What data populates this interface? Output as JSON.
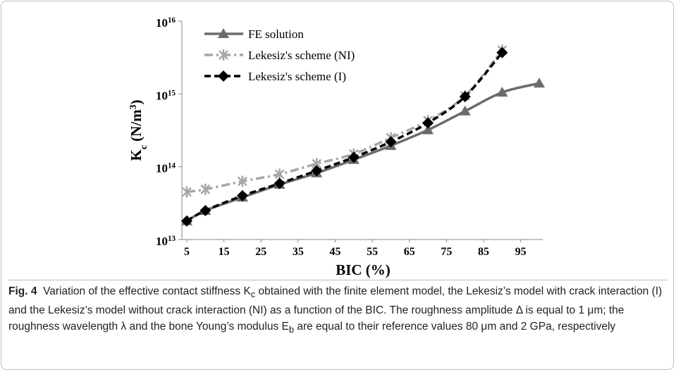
{
  "chart_data": {
    "type": "line",
    "log_y": true,
    "xlabel": "BIC (%)",
    "ylabel": "K_c (N/m^3)",
    "xlim": [
      5,
      100
    ],
    "xticks": [
      5,
      15,
      25,
      35,
      45,
      55,
      65,
      75,
      85,
      95
    ],
    "ylim": [
      10000000000000.0,
      1e+16
    ],
    "yticks": [
      {
        "value": 10000000000000.0,
        "label": "10^13"
      },
      {
        "value": 100000000000000.0,
        "label": "10^14"
      },
      {
        "value": 1000000000000000.0,
        "label": "10^15"
      },
      {
        "value": 1e+16,
        "label": "10^16"
      }
    ],
    "legend": "upper left",
    "series": [
      {
        "name": "FE solution",
        "color": "#6b6b6b",
        "marker": "triangle",
        "dash": "solid",
        "x": [
          5,
          10,
          20,
          30,
          40,
          50,
          60,
          70,
          80,
          90,
          100
        ],
        "values": [
          18000000000000.0,
          25000000000000.0,
          38000000000000.0,
          57000000000000.0,
          82000000000000.0,
          125000000000000.0,
          195000000000000.0,
          320000000000000.0,
          580000000000000.0,
          1050000000000000.0,
          1400000000000000.0
        ]
      },
      {
        "name": "Lekesiz's scheme (NI)",
        "color": "#a6a6a6",
        "marker": "star",
        "dash": "dashdot",
        "x": [
          5,
          10,
          20,
          30,
          40,
          50,
          60,
          70,
          80,
          90
        ],
        "values": [
          45000000000000.0,
          49000000000000.0,
          63000000000000.0,
          79000000000000.0,
          110000000000000.0,
          150000000000000.0,
          250000000000000.0,
          430000000000000.0,
          940000000000000.0,
          4000000000000000.0
        ]
      },
      {
        "name": "Lekesiz's scheme (I)",
        "color": "#000000",
        "marker": "diamond",
        "dash": "dashed",
        "x": [
          5,
          10,
          20,
          30,
          40,
          50,
          60,
          70,
          80,
          90
        ],
        "values": [
          18000000000000.0,
          25000000000000.0,
          40000000000000.0,
          59000000000000.0,
          88000000000000.0,
          135000000000000.0,
          220000000000000.0,
          400000000000000.0,
          920000000000000.0,
          3700000000000000.0
        ]
      }
    ]
  },
  "caption": {
    "label": "Fig. 4",
    "text": "Variation of the effective contact stiffness K_c obtained with the finite element model, the Lekesiz’s model with crack interaction (I) and the Lekesiz’s model without crack interaction (NI) as a function of the BIC. The roughness amplitude Δ is equal to 1 μm; the roughness wavelength λ and the bone Young’s modulus E_b are equal to their reference values 80 μm and 2 GPa, respectively"
  }
}
